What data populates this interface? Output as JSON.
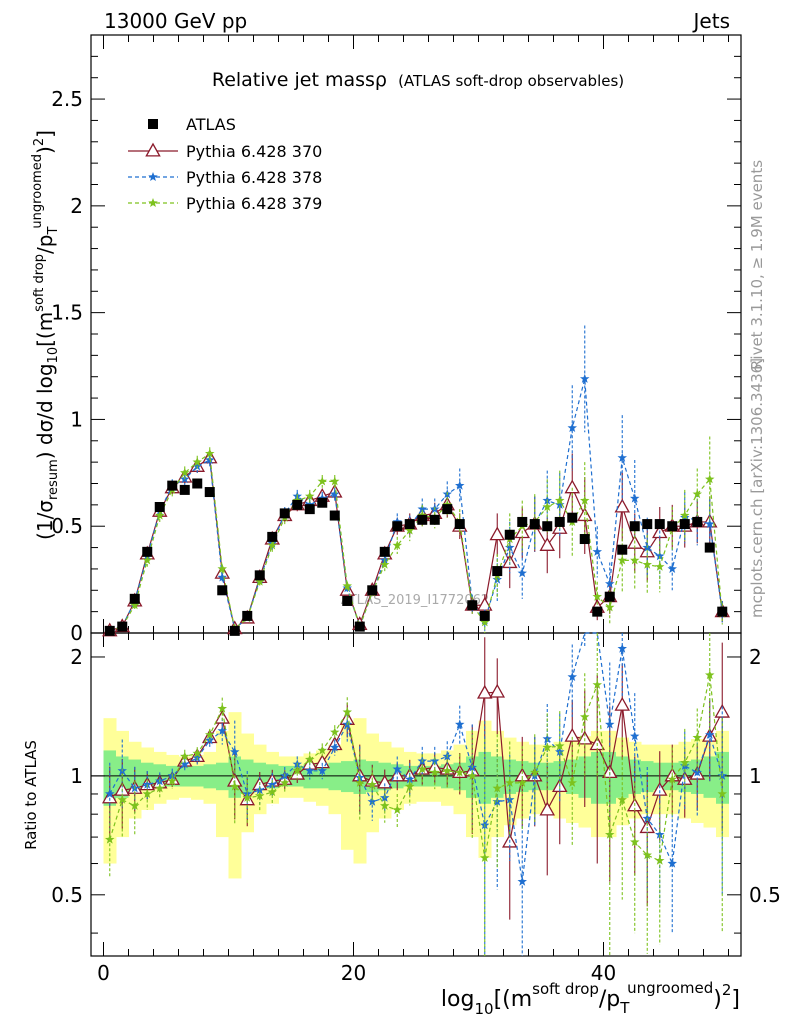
{
  "header": {
    "energy_label": "13000 GeV pp",
    "category_label": "Jets",
    "title_main": "Relative jet massρ",
    "title_sub": "(ATLAS soft-drop observables)",
    "side_rivet": "Rivet 3.1.10, ≥ 1.9M events",
    "side_mcplots": "mcplots.cern.ch [arXiv:1306.3436]",
    "watermark": "ATLAS_2019_I1772062"
  },
  "axes": {
    "ylabel_main": "(1/σresum) dσ/d log10[(msoft drop/pTungroomed)2]",
    "ylabel_ratio": "Ratio to ATLAS",
    "xlabel": "log10[(msoft drop/pTungroomed)2]",
    "main_yticks": [
      "0",
      "0.5",
      "1",
      "1.5",
      "2",
      "2.5"
    ],
    "ratio_yticks": [
      "0.5",
      "1",
      "2"
    ],
    "xticks": [
      "0",
      "20",
      "40"
    ]
  },
  "legend": [
    "ATLAS",
    "Pythia 6.428 370",
    "Pythia 6.428 378",
    "Pythia 6.428 379"
  ],
  "chart_data": {
    "type": "scatter",
    "xlim": [
      -1,
      51
    ],
    "ylim": [
      0,
      2.8
    ],
    "ratio_ylim": [
      0.35,
      2.3
    ],
    "ratio_log": true,
    "grid": false,
    "legend_position": "top-left",
    "x": [
      0.5,
      1.5,
      2.5,
      3.5,
      4.5,
      5.5,
      6.5,
      7.5,
      8.5,
      9.5,
      10.5,
      11.5,
      12.5,
      13.5,
      14.5,
      15.5,
      16.5,
      17.5,
      18.5,
      19.5,
      20.5,
      21.5,
      22.5,
      23.5,
      24.5,
      25.5,
      26.5,
      27.5,
      28.5,
      29.5,
      30.5,
      31.5,
      32.5,
      33.5,
      34.5,
      35.5,
      36.5,
      37.5,
      38.5,
      39.5,
      40.5,
      41.5,
      42.5,
      43.5,
      44.5,
      45.5,
      46.5,
      47.5,
      48.5,
      49.5
    ],
    "series": [
      {
        "name": "ATLAS",
        "color": "#000000",
        "values": [
          0.01,
          0.03,
          0.16,
          0.38,
          0.59,
          0.69,
          0.67,
          0.7,
          0.66,
          0.2,
          0.01,
          0.08,
          0.27,
          0.45,
          0.56,
          0.6,
          0.58,
          0.61,
          0.55,
          0.15,
          0.03,
          0.2,
          0.38,
          0.5,
          0.51,
          0.53,
          0.53,
          0.58,
          0.51,
          0.13,
          0.08,
          0.29,
          0.46,
          0.52,
          0.51,
          0.5,
          0.52,
          0.54,
          0.44,
          0.1,
          0.17,
          0.39,
          0.5,
          0.51,
          0.51,
          0.5,
          0.51,
          0.52,
          0.4,
          0.1
        ]
      },
      {
        "name": "Pythia 6.428 370",
        "color": "#8b1a2b",
        "values": [
          0.01,
          0.03,
          0.15,
          0.37,
          0.57,
          0.68,
          0.73,
          0.78,
          0.82,
          0.28,
          0.02,
          0.07,
          0.26,
          0.44,
          0.55,
          0.6,
          0.62,
          0.64,
          0.66,
          0.2,
          0.04,
          0.2,
          0.37,
          0.5,
          0.51,
          0.55,
          0.56,
          0.6,
          0.5,
          0.13,
          0.13,
          0.46,
          0.33,
          0.47,
          0.51,
          0.41,
          0.49,
          0.68,
          0.55,
          0.12,
          0.17,
          0.59,
          0.42,
          0.38,
          0.47,
          0.5,
          0.5,
          0.52,
          0.52,
          0.1
        ],
        "errors": [
          0.01,
          0.01,
          0.02,
          0.03,
          0.03,
          0.03,
          0.03,
          0.03,
          0.03,
          0.02,
          0.01,
          0.01,
          0.02,
          0.03,
          0.03,
          0.03,
          0.03,
          0.03,
          0.03,
          0.02,
          0.01,
          0.02,
          0.03,
          0.04,
          0.05,
          0.05,
          0.05,
          0.06,
          0.06,
          0.04,
          0.05,
          0.1,
          0.12,
          0.12,
          0.13,
          0.13,
          0.14,
          0.16,
          0.18,
          0.06,
          0.08,
          0.16,
          0.14,
          0.14,
          0.12,
          0.1,
          0.1,
          0.1,
          0.12,
          0.05
        ]
      },
      {
        "name": "Pythia 6.428 378",
        "color": "#1f6fd0",
        "values": [
          0.01,
          0.03,
          0.15,
          0.36,
          0.57,
          0.69,
          0.72,
          0.78,
          0.81,
          0.26,
          0.02,
          0.07,
          0.25,
          0.42,
          0.56,
          0.64,
          0.6,
          0.63,
          0.65,
          0.21,
          0.03,
          0.19,
          0.34,
          0.52,
          0.5,
          0.58,
          0.58,
          0.65,
          0.69,
          0.14,
          0.06,
          0.25,
          0.4,
          0.28,
          0.51,
          0.62,
          0.6,
          0.96,
          1.19,
          0.38,
          0.23,
          0.82,
          0.63,
          0.4,
          0.36,
          0.3,
          0.54,
          0.53,
          0.51,
          0.1
        ],
        "errors": [
          0.01,
          0.01,
          0.02,
          0.03,
          0.03,
          0.03,
          0.03,
          0.03,
          0.03,
          0.02,
          0.01,
          0.01,
          0.02,
          0.03,
          0.03,
          0.03,
          0.03,
          0.03,
          0.03,
          0.02,
          0.01,
          0.02,
          0.03,
          0.04,
          0.05,
          0.05,
          0.05,
          0.06,
          0.08,
          0.04,
          0.05,
          0.1,
          0.12,
          0.12,
          0.13,
          0.14,
          0.15,
          0.2,
          0.25,
          0.12,
          0.1,
          0.2,
          0.18,
          0.14,
          0.12,
          0.1,
          0.12,
          0.12,
          0.12,
          0.05
        ]
      },
      {
        "name": "Pythia 6.428 379",
        "color": "#7dc21e",
        "values": [
          0.01,
          0.03,
          0.13,
          0.34,
          0.55,
          0.67,
          0.75,
          0.8,
          0.84,
          0.3,
          0.02,
          0.07,
          0.24,
          0.41,
          0.54,
          0.62,
          0.64,
          0.71,
          0.71,
          0.22,
          0.03,
          0.19,
          0.32,
          0.41,
          0.48,
          0.55,
          0.54,
          0.6,
          0.52,
          0.13,
          0.05,
          0.27,
          0.44,
          0.5,
          0.52,
          0.59,
          0.62,
          0.52,
          0.62,
          0.17,
          0.12,
          0.34,
          0.34,
          0.32,
          0.31,
          0.49,
          0.55,
          0.65,
          0.72,
          0.09
        ],
        "errors": [
          0.01,
          0.01,
          0.02,
          0.03,
          0.03,
          0.03,
          0.03,
          0.03,
          0.03,
          0.02,
          0.01,
          0.01,
          0.02,
          0.03,
          0.03,
          0.03,
          0.03,
          0.03,
          0.03,
          0.02,
          0.01,
          0.02,
          0.03,
          0.04,
          0.05,
          0.05,
          0.05,
          0.06,
          0.06,
          0.04,
          0.05,
          0.1,
          0.12,
          0.12,
          0.13,
          0.13,
          0.14,
          0.16,
          0.18,
          0.07,
          0.08,
          0.15,
          0.14,
          0.14,
          0.12,
          0.1,
          0.12,
          0.12,
          0.2,
          0.05
        ]
      }
    ],
    "ratio_series": [
      {
        "name": "Pythia 6.428 370",
        "values": [
          0.88,
          0.92,
          0.93,
          0.95,
          0.96,
          0.98,
          1.09,
          1.12,
          1.25,
          1.4,
          0.97,
          0.87,
          0.95,
          0.97,
          0.98,
          1.01,
          1.07,
          1.08,
          1.2,
          1.39,
          1.0,
          0.97,
          0.96,
          1.0,
          1.0,
          1.04,
          1.05,
          1.04,
          1.02,
          1.03,
          1.62,
          1.63,
          0.68,
          1.0,
          1.0,
          0.82,
          0.94,
          1.26,
          1.24,
          1.2,
          1.02,
          1.51,
          0.84,
          0.74,
          0.92,
          1.0,
          0.98,
          1.01,
          1.26,
          1.45
        ]
      },
      {
        "name": "Pythia 6.428 378",
        "values": [
          0.9,
          1.03,
          0.93,
          0.95,
          0.97,
          1.0,
          1.07,
          1.11,
          1.23,
          1.3,
          1.15,
          0.9,
          0.92,
          0.95,
          1.0,
          1.07,
          1.03,
          1.03,
          1.18,
          1.35,
          0.99,
          0.86,
          0.88,
          1.04,
          0.98,
          1.09,
          1.09,
          1.12,
          1.35,
          1.05,
          0.75,
          0.86,
          0.87,
          0.54,
          1.0,
          1.24,
          1.15,
          1.78,
          2.7,
          3.8,
          1.35,
          2.1,
          1.26,
          0.78,
          0.71,
          0.6,
          1.06,
          1.02,
          1.27,
          1.0
        ]
      },
      {
        "name": "Pythia 6.428 379",
        "values": [
          0.69,
          0.87,
          0.84,
          0.9,
          0.93,
          0.97,
          1.12,
          1.14,
          1.27,
          1.48,
          0.94,
          0.88,
          0.89,
          0.91,
          0.96,
          1.03,
          1.1,
          1.16,
          1.29,
          1.45,
          0.96,
          0.95,
          0.84,
          0.82,
          0.94,
          1.04,
          1.02,
          1.03,
          1.02,
          1.0,
          0.62,
          0.93,
          0.96,
          0.96,
          1.02,
          1.18,
          1.19,
          0.96,
          1.41,
          1.7,
          0.71,
          0.87,
          0.68,
          0.63,
          0.61,
          0.98,
          1.08,
          1.25,
          1.8,
          0.9
        ]
      }
    ],
    "band_inner": [
      0.16,
      0.12,
      0.1,
      0.08,
      0.07,
      0.06,
      0.06,
      0.06,
      0.07,
      0.08,
      0.12,
      0.1,
      0.08,
      0.07,
      0.06,
      0.06,
      0.07,
      0.07,
      0.08,
      0.09,
      0.1,
      0.09,
      0.08,
      0.07,
      0.06,
      0.06,
      0.06,
      0.07,
      0.08,
      0.12,
      0.15,
      0.12,
      0.1,
      0.09,
      0.08,
      0.08,
      0.09,
      0.1,
      0.12,
      0.15,
      0.15,
      0.12,
      0.1,
      0.09,
      0.08,
      0.08,
      0.09,
      0.1,
      0.12,
      0.15
    ],
    "band_outer": [
      0.4,
      0.3,
      0.22,
      0.18,
      0.15,
      0.13,
      0.12,
      0.13,
      0.15,
      0.3,
      0.45,
      0.28,
      0.2,
      0.15,
      0.12,
      0.12,
      0.14,
      0.16,
      0.2,
      0.35,
      0.4,
      0.28,
      0.22,
      0.18,
      0.15,
      0.14,
      0.14,
      0.16,
      0.2,
      0.3,
      0.38,
      0.3,
      0.25,
      0.22,
      0.2,
      0.2,
      0.22,
      0.24,
      0.26,
      0.3,
      0.3,
      0.25,
      0.22,
      0.2,
      0.2,
      0.2,
      0.22,
      0.24,
      0.26,
      0.3
    ]
  }
}
